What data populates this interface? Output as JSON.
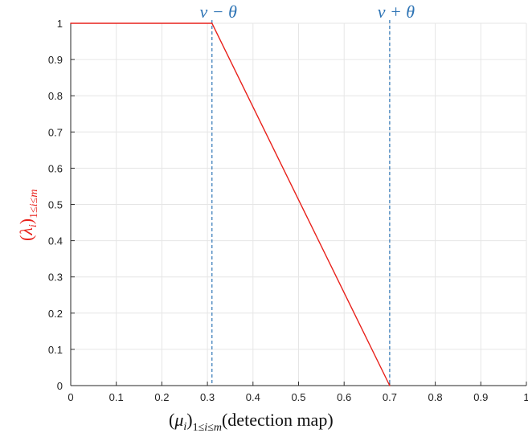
{
  "chart_data": {
    "type": "line",
    "xlim": [
      0,
      1
    ],
    "ylim": [
      0,
      1
    ],
    "grid": true,
    "x_ticks": [
      "0",
      "0.1",
      "0.2",
      "0.3",
      "0.4",
      "0.5",
      "0.6",
      "0.7",
      "0.8",
      "0.9",
      "1"
    ],
    "y_ticks": [
      "0",
      "0.1",
      "0.2",
      "0.3",
      "0.4",
      "0.5",
      "0.6",
      "0.7",
      "0.8",
      "0.9",
      "1"
    ],
    "xlabel": "(μ_i)_{1≤i≤m}(detection map)",
    "ylabel": "(λ_i)_{1≤i≤m}",
    "series": [
      {
        "color": "#e8211b",
        "points": [
          {
            "x": 0,
            "y": 1
          },
          {
            "x": 0.31,
            "y": 1
          },
          {
            "x": 0.7,
            "y": 0
          }
        ]
      }
    ],
    "vlines": [
      {
        "x": 0.31,
        "label": "ν − θ",
        "color": "#2e74b5"
      },
      {
        "x": 0.7,
        "label": "ν + θ",
        "color": "#2e74b5"
      }
    ]
  }
}
